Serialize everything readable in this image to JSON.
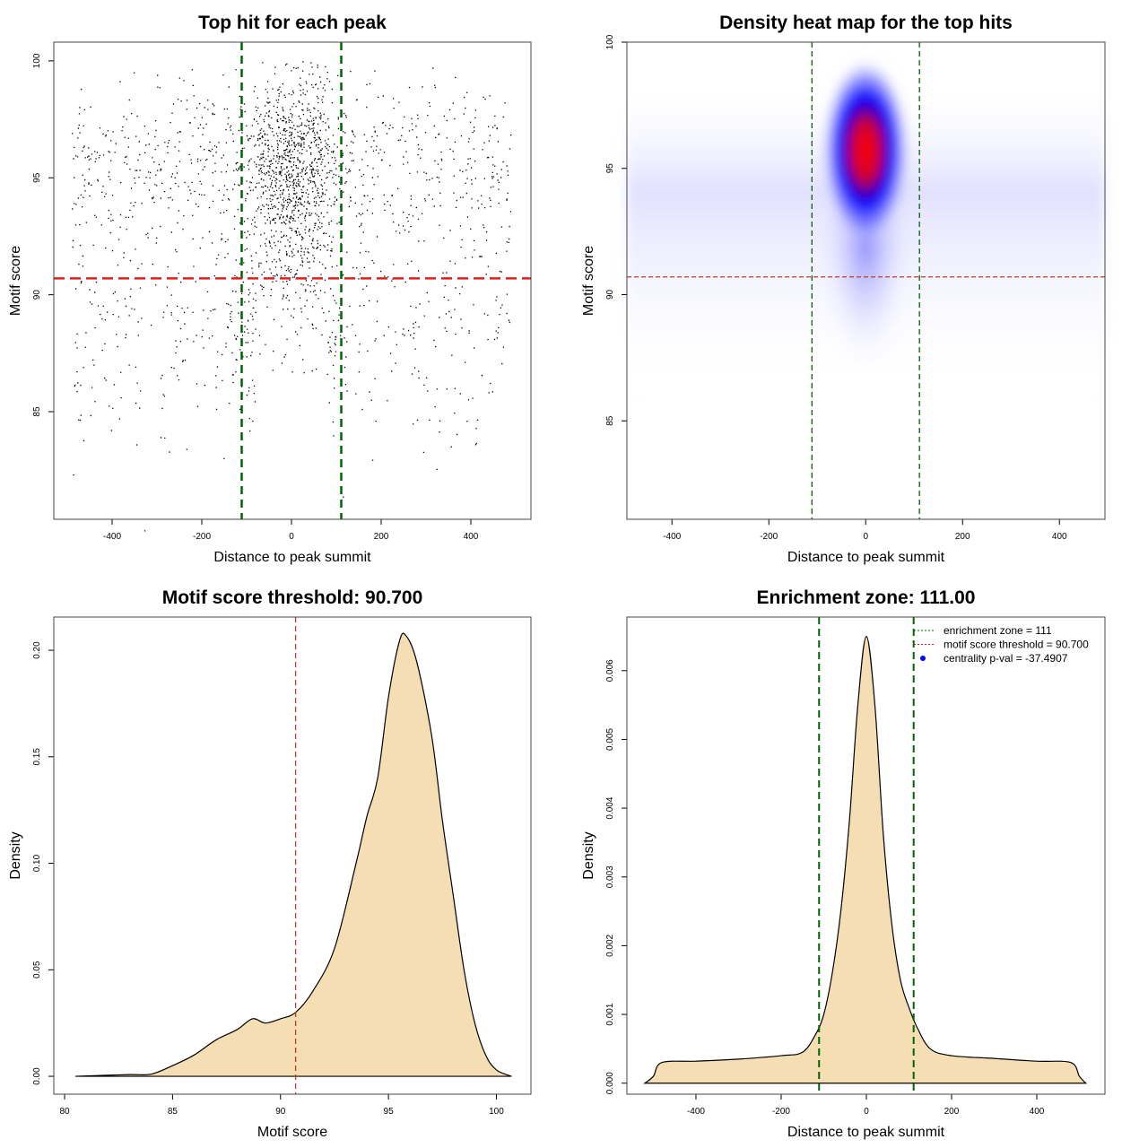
{
  "chart_data": [
    {
      "type": "scatter",
      "title": "Top hit for each peak",
      "xlabel": "Distance to peak summit",
      "ylabel": "Motif score",
      "xlim": [
        -530,
        534
      ],
      "ylim": [
        80.4,
        100.8
      ],
      "xticks": [
        -400,
        -200,
        0,
        200,
        400
      ],
      "yticks": [
        85,
        90,
        95,
        100
      ],
      "hlines": [
        {
          "value": 90.7,
          "color": "#e0201b"
        }
      ],
      "vlines": [
        {
          "value": -111,
          "color": "#006400"
        },
        {
          "value": 111,
          "color": "#006400"
        }
      ],
      "points_note": "dense cloud centred at x=0, y≈95; approximate distribution",
      "point_count": 9000
    },
    {
      "type": "heatmap",
      "title": "Density heat map for the top hits",
      "xlabel": "Distance to peak summit",
      "ylabel": "Motif score",
      "xlim": [
        -493,
        494
      ],
      "ylim": [
        81.1,
        100
      ],
      "xticks": [
        -400,
        -200,
        0,
        200,
        400
      ],
      "yticks": [
        85,
        90,
        95,
        100
      ],
      "peak": {
        "x": 0,
        "y": 95.7
      },
      "colors": [
        "#ffffff",
        "#0000ff",
        "#ff0000"
      ],
      "hlines": [
        {
          "value": 90.7,
          "color": "#c0392b"
        }
      ],
      "vlines": [
        {
          "value": -111,
          "color": "#006400"
        },
        {
          "value": 111,
          "color": "#006400"
        }
      ]
    },
    {
      "type": "area",
      "title": "Motif score threshold: 90.700",
      "xlabel": "Motif score",
      "ylabel": "Density",
      "xlim": [
        79.5,
        101.6
      ],
      "ylim": [
        -0.0084,
        0.2156
      ],
      "xticks": [
        80,
        85,
        90,
        95,
        100
      ],
      "yticks": [
        0,
        0.05,
        0.1,
        0.15,
        0.2
      ],
      "ytick_labels": [
        "0.00",
        "0.05",
        "0.10",
        "0.15",
        "0.20"
      ],
      "fill": "#f5deb3",
      "x": [
        80.5,
        83,
        84,
        85,
        86,
        87,
        88,
        88.7,
        89.3,
        90,
        90.7,
        91.5,
        92.5,
        93.5,
        94,
        94.5,
        95,
        95.5,
        95.8,
        96.3,
        97,
        97.5,
        98,
        98.5,
        99,
        99.5,
        100,
        100.7
      ],
      "y": [
        0,
        0.0008,
        0.001,
        0.005,
        0.01,
        0.017,
        0.022,
        0.027,
        0.025,
        0.027,
        0.03,
        0.04,
        0.06,
        0.1,
        0.122,
        0.14,
        0.178,
        0.204,
        0.207,
        0.195,
        0.16,
        0.12,
        0.085,
        0.05,
        0.025,
        0.01,
        0.003,
        0
      ],
      "vlines": [
        {
          "value": 90.7,
          "color": "#c0392b"
        }
      ]
    },
    {
      "type": "area",
      "title": "Enrichment zone: 111.00",
      "xlabel": "Distance to peak summit",
      "ylabel": "Density",
      "xlim": [
        -562,
        560
      ],
      "ylim": [
        -0.00016,
        0.00678
      ],
      "xticks": [
        -400,
        -200,
        0,
        200,
        400
      ],
      "yticks": [
        0,
        0.001,
        0.002,
        0.003,
        0.004,
        0.005,
        0.006
      ],
      "ytick_labels": [
        "0.000",
        "0.001",
        "0.002",
        "0.003",
        "0.004",
        "0.005",
        "0.006"
      ],
      "fill": "#f5deb3",
      "x": [
        -520,
        -500,
        -480,
        -400,
        -300,
        -200,
        -150,
        -120,
        -100,
        -80,
        -60,
        -40,
        -20,
        0,
        20,
        40,
        60,
        80,
        100,
        120,
        150,
        200,
        300,
        400,
        480,
        500,
        515
      ],
      "y": [
        0,
        0.0001,
        0.0003,
        0.00032,
        0.00035,
        0.0004,
        0.00045,
        0.0007,
        0.001,
        0.0016,
        0.0025,
        0.0038,
        0.0055,
        0.0065,
        0.0055,
        0.0036,
        0.0023,
        0.0015,
        0.0011,
        0.0008,
        0.0005,
        0.0004,
        0.00036,
        0.00032,
        0.0003,
        0.0001,
        0
      ],
      "vlines": [
        {
          "value": -111,
          "color": "#006400"
        },
        {
          "value": 111,
          "color": "#006400"
        }
      ],
      "legend": {
        "position": "top-right",
        "entries": [
          {
            "label": "enrichment zone = 111",
            "color": "#006400",
            "style": "dotted"
          },
          {
            "label": "motif score threshold = 90.700",
            "color": "#e0201b",
            "style": "dotted"
          },
          {
            "label": "centrality p-val = -37.4907",
            "color": "#0000ff",
            "style": "point"
          }
        ]
      }
    }
  ]
}
